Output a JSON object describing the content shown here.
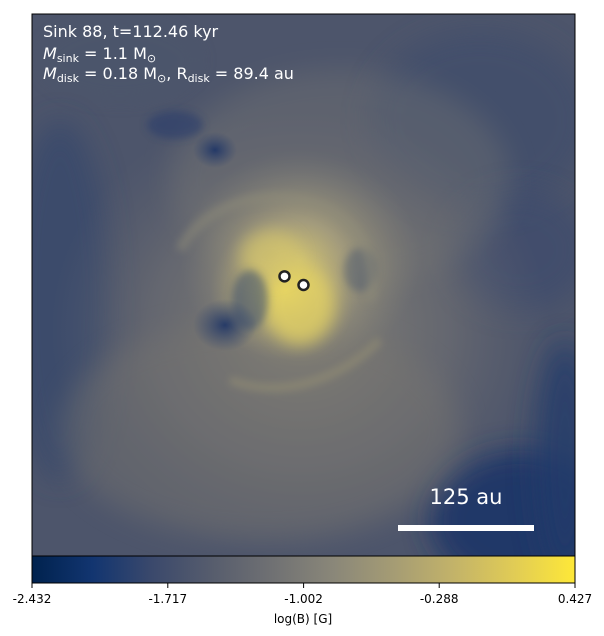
{
  "chart_data": {
    "type": "heatmap",
    "title": "",
    "annotations": {
      "sink_line": "Sink 88, t=112.46 kyr",
      "msink_symbol": "M",
      "msink_sub": "sink",
      "msink_value": " = 1.1 M",
      "msink_unit_sub": "⊙",
      "mdisk_symbol": "M",
      "mdisk_sub": "disk",
      "mdisk_value": " = 0.18 M",
      "mdisk_unit_sub": "⊙",
      "rdisk_prefix": ", R",
      "rdisk_sub": "disk",
      "rdisk_value": " = 89.4 au"
    },
    "scale_bar": {
      "label": "125 au",
      "length_au": 125
    },
    "sinks": [
      {
        "name": "sink-a",
        "x": 0.465,
        "y": 0.484
      },
      {
        "name": "sink-b",
        "x": 0.5,
        "y": 0.5
      }
    ],
    "colorbar": {
      "label": "log(B) [G]",
      "ticks": [
        "-2.432",
        "-1.717",
        "-1.002",
        "-0.288",
        "0.427"
      ],
      "range": [
        -2.432,
        0.427
      ],
      "colors": [
        "#00224e",
        "#123570",
        "#3b496c",
        "#575d6d",
        "#707173",
        "#8a8779",
        "#a59c74",
        "#c3b369",
        "#e1cc55",
        "#fee838"
      ]
    }
  }
}
